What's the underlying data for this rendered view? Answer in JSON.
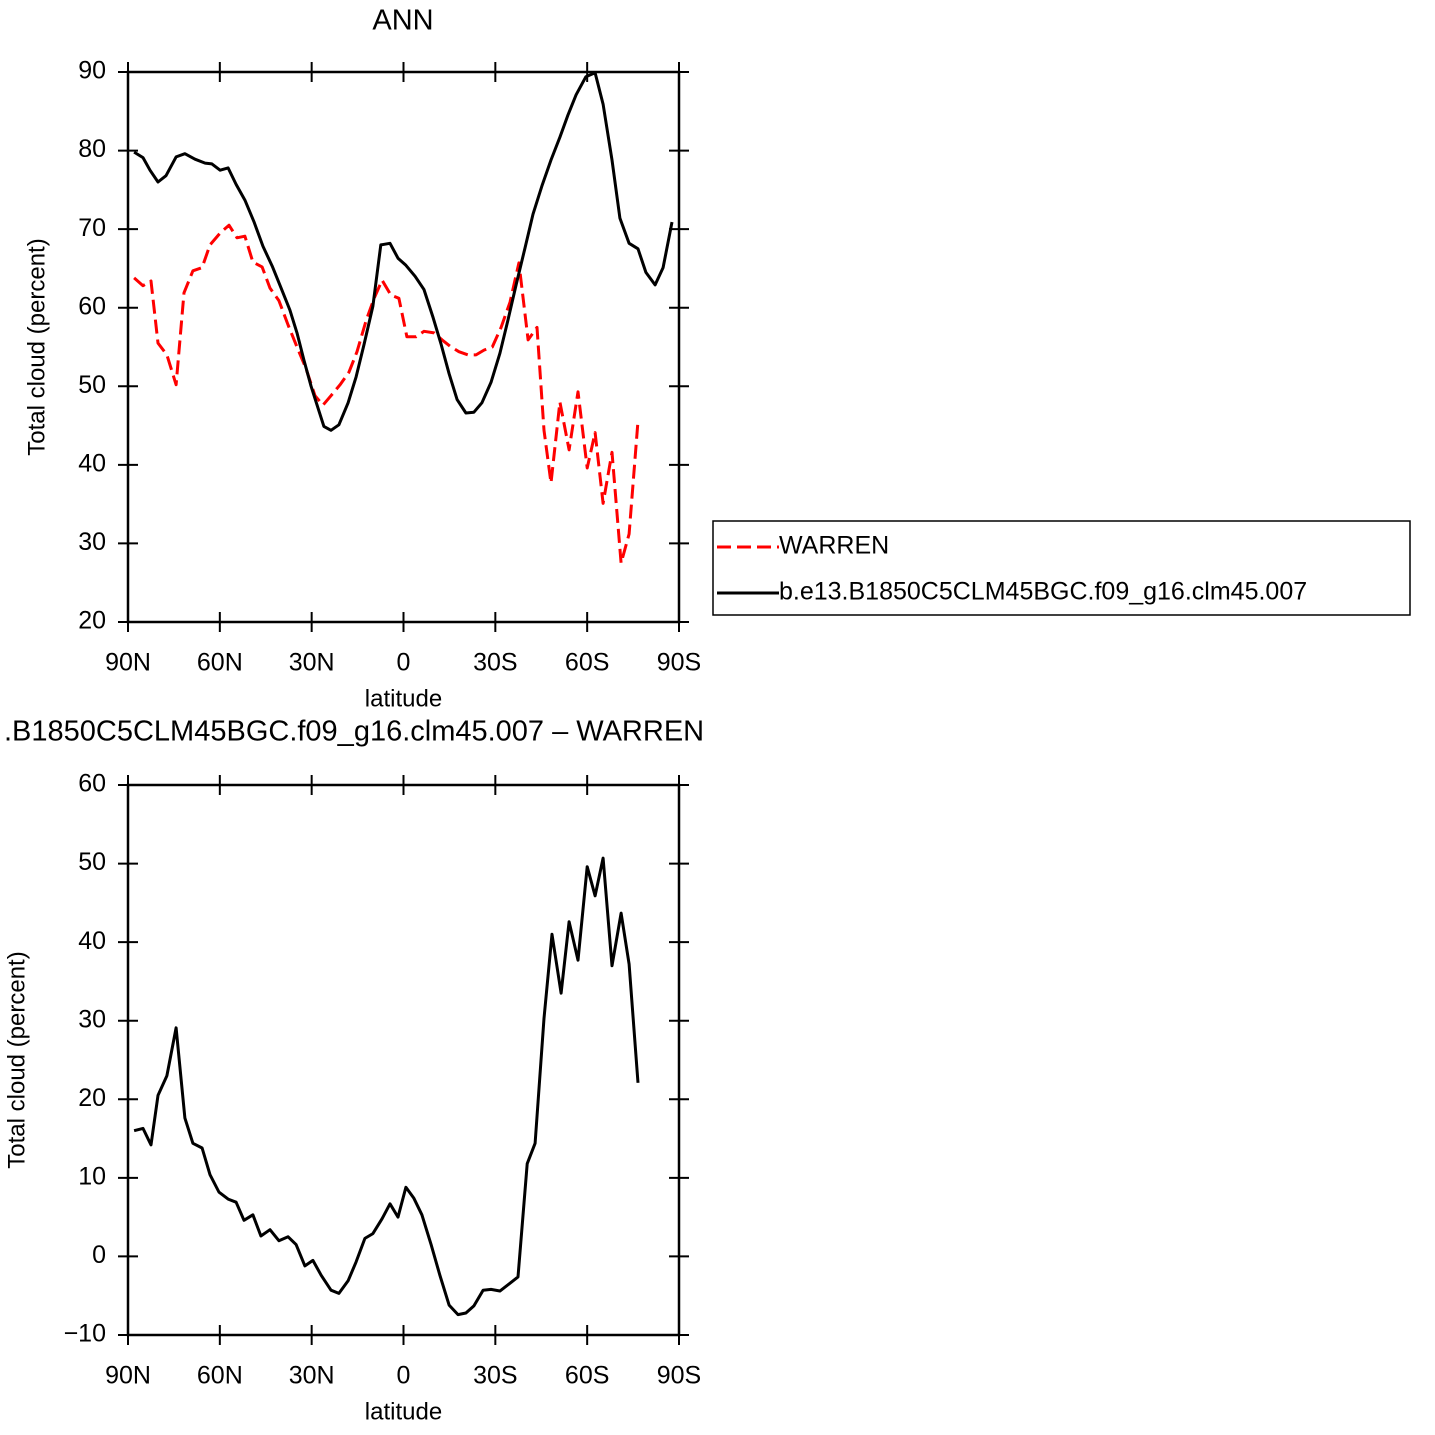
{
  "chart_data": [
    {
      "type": "line",
      "title": "ANN",
      "xlabel": "latitude",
      "ylabel": "Total cloud (percent)",
      "xlim": [
        90,
        -90
      ],
      "xticks": [
        {
          "value": 90,
          "label": "90N"
        },
        {
          "value": 60,
          "label": "60N"
        },
        {
          "value": 30,
          "label": "30N"
        },
        0,
        {
          "value": -30,
          "label": "30S"
        },
        {
          "value": -60,
          "label": "60S"
        },
        {
          "value": -90,
          "label": "90S"
        }
      ],
      "ylim": [
        20,
        90
      ],
      "yticks": [
        20,
        30,
        40,
        50,
        60,
        70,
        80,
        90
      ],
      "legend": "right",
      "series": [
        {
          "name": "WARREN",
          "color": "#ff0000",
          "dashed": true,
          "x": [
            88.0,
            85.1,
            82.5,
            80.2,
            77.3,
            74.3,
            71.7,
            68.8,
            65.8,
            63.2,
            59.9,
            57.0,
            54.4,
            51.8,
            49.2,
            46.2,
            43.6,
            40.7,
            37.7,
            34.8,
            31.9,
            28.9,
            26.3,
            23.7,
            20.7,
            17.8,
            15.2,
            12.2,
            9.6,
            7.0,
            4.1,
            1.5,
            -1.1,
            -4.1,
            -6.7,
            -10.0,
            -12.6,
            -15.2,
            -18.1,
            -21.1,
            -23.7,
            -26.3,
            -29.0,
            -31.9,
            -34.8,
            -37.7,
            -40.7,
            -43.6,
            -45.9,
            -48.2,
            -51.1,
            -54.1,
            -57.0,
            -60.0,
            -62.6,
            -65.2,
            -68.1,
            -71.1,
            -73.7,
            -76.6
          ],
          "values": [
            63.8,
            62.8,
            63.4,
            55.5,
            54.0,
            50.2,
            61.9,
            64.7,
            65.1,
            68.0,
            69.5,
            70.5,
            68.9,
            69.1,
            65.8,
            65.2,
            62.5,
            60.9,
            57.8,
            55.0,
            52.3,
            48.8,
            47.6,
            48.8,
            50.2,
            51.8,
            54.4,
            58.4,
            61.2,
            63.5,
            61.6,
            61.2,
            56.3,
            56.3,
            57.0,
            56.8,
            55.9,
            55.1,
            54.4,
            54.0,
            54.0,
            54.6,
            55.0,
            57.5,
            60.7,
            65.7,
            55.9,
            57.5,
            44.4,
            37.7,
            48.0,
            41.9,
            49.3,
            39.6,
            44.1,
            35.1,
            41.6,
            27.5,
            31.2,
            45.6
          ]
        },
        {
          "name": "b.e13.B1850C5CLM45BGC.f09_g16.clm45.007",
          "color": "#000000",
          "dashed": false,
          "x": [
            88.0,
            85.1,
            82.8,
            80.2,
            77.6,
            74.3,
            71.4,
            68.1,
            64.8,
            62.6,
            59.9,
            57.3,
            54.7,
            51.8,
            48.8,
            45.9,
            42.9,
            40.0,
            37.1,
            34.8,
            32.5,
            30.2,
            27.9,
            26.0,
            23.7,
            21.1,
            18.1,
            15.5,
            12.9,
            10.0,
            7.4,
            4.4,
            1.8,
            -0.8,
            -3.8,
            -6.7,
            -9.7,
            -12.3,
            -14.9,
            -17.5,
            -20.4,
            -23.0,
            -25.6,
            -28.6,
            -31.5,
            -34.1,
            -36.8,
            -39.7,
            -42.3,
            -45.3,
            -48.2,
            -51.1,
            -53.7,
            -56.4,
            -59.6,
            -62.6,
            -65.2,
            -68.1,
            -70.7,
            -73.7,
            -76.6,
            -79.2,
            -82.2,
            -84.8,
            -87.7
          ],
          "values": [
            79.8,
            79.1,
            77.5,
            76.0,
            76.8,
            79.2,
            79.6,
            78.9,
            78.4,
            78.3,
            77.5,
            77.8,
            75.7,
            73.7,
            70.9,
            67.8,
            65.3,
            62.5,
            59.7,
            56.8,
            53.3,
            50.0,
            47.2,
            44.9,
            44.4,
            45.1,
            47.9,
            51.2,
            55.3,
            60.2,
            68.0,
            68.2,
            66.3,
            65.4,
            64.0,
            62.3,
            58.7,
            55.3,
            51.6,
            48.3,
            46.6,
            46.7,
            47.9,
            50.5,
            54.2,
            58.4,
            62.9,
            67.6,
            71.9,
            75.6,
            78.8,
            81.7,
            84.5,
            87.1,
            89.4,
            89.9,
            85.9,
            78.8,
            71.4,
            68.2,
            67.5,
            64.5,
            62.9,
            65.1,
            70.9
          ]
        }
      ]
    },
    {
      "type": "line",
      "title": ".B1850C5CLM45BGC.f09_g16.clm45.007 – WARREN",
      "xlabel": "latitude",
      "ylabel": "Total cloud (percent)",
      "xlim": [
        90,
        -90
      ],
      "xticks": [
        {
          "value": 90,
          "label": "90N"
        },
        {
          "value": 60,
          "label": "60N"
        },
        {
          "value": 30,
          "label": "30N"
        },
        0,
        {
          "value": -30,
          "label": "30S"
        },
        {
          "value": -60,
          "label": "60S"
        },
        {
          "value": -90,
          "label": "90S"
        }
      ],
      "ylim": [
        -10,
        60
      ],
      "yticks": [
        {
          "value": -10,
          "label": "−10"
        },
        0,
        10,
        20,
        30,
        40,
        50,
        60
      ],
      "series": [
        {
          "color": "#000000",
          "dashed": false,
          "x": [
            88.0,
            85.1,
            82.5,
            80.2,
            77.3,
            74.3,
            71.4,
            68.8,
            65.8,
            63.2,
            60.3,
            57.3,
            54.7,
            52.1,
            49.2,
            46.6,
            43.6,
            40.7,
            37.7,
            35.1,
            32.2,
            29.6,
            26.9,
            23.7,
            21.1,
            18.1,
            15.5,
            12.6,
            10.0,
            7.0,
            4.4,
            1.8,
            -0.8,
            -3.4,
            -6.0,
            -9.0,
            -11.9,
            -14.9,
            -17.8,
            -20.4,
            -23.0,
            -26.0,
            -28.6,
            -31.5,
            -34.5,
            -37.4,
            -40.4,
            -43.0,
            -45.9,
            -48.5,
            -51.5,
            -54.1,
            -57.0,
            -60.0,
            -62.6,
            -65.2,
            -68.1,
            -71.1,
            -73.7,
            -76.6
          ],
          "values": [
            16.0,
            16.3,
            14.2,
            20.5,
            23.0,
            29.1,
            17.6,
            14.4,
            13.8,
            10.4,
            8.2,
            7.3,
            6.9,
            4.6,
            5.3,
            2.6,
            3.4,
            2.0,
            2.5,
            1.5,
            -1.2,
            -0.5,
            -2.4,
            -4.3,
            -4.7,
            -3.1,
            -0.7,
            2.3,
            2.9,
            4.8,
            6.7,
            5.0,
            8.8,
            7.4,
            5.3,
            1.5,
            -2.4,
            -6.2,
            -7.4,
            -7.2,
            -6.3,
            -4.3,
            -4.2,
            -4.4,
            -3.5,
            -2.6,
            11.8,
            14.4,
            30.3,
            41.0,
            33.5,
            42.6,
            37.7,
            49.6,
            45.9,
            50.7,
            37.0,
            43.7,
            37.2,
            22.1
          ]
        }
      ]
    }
  ]
}
